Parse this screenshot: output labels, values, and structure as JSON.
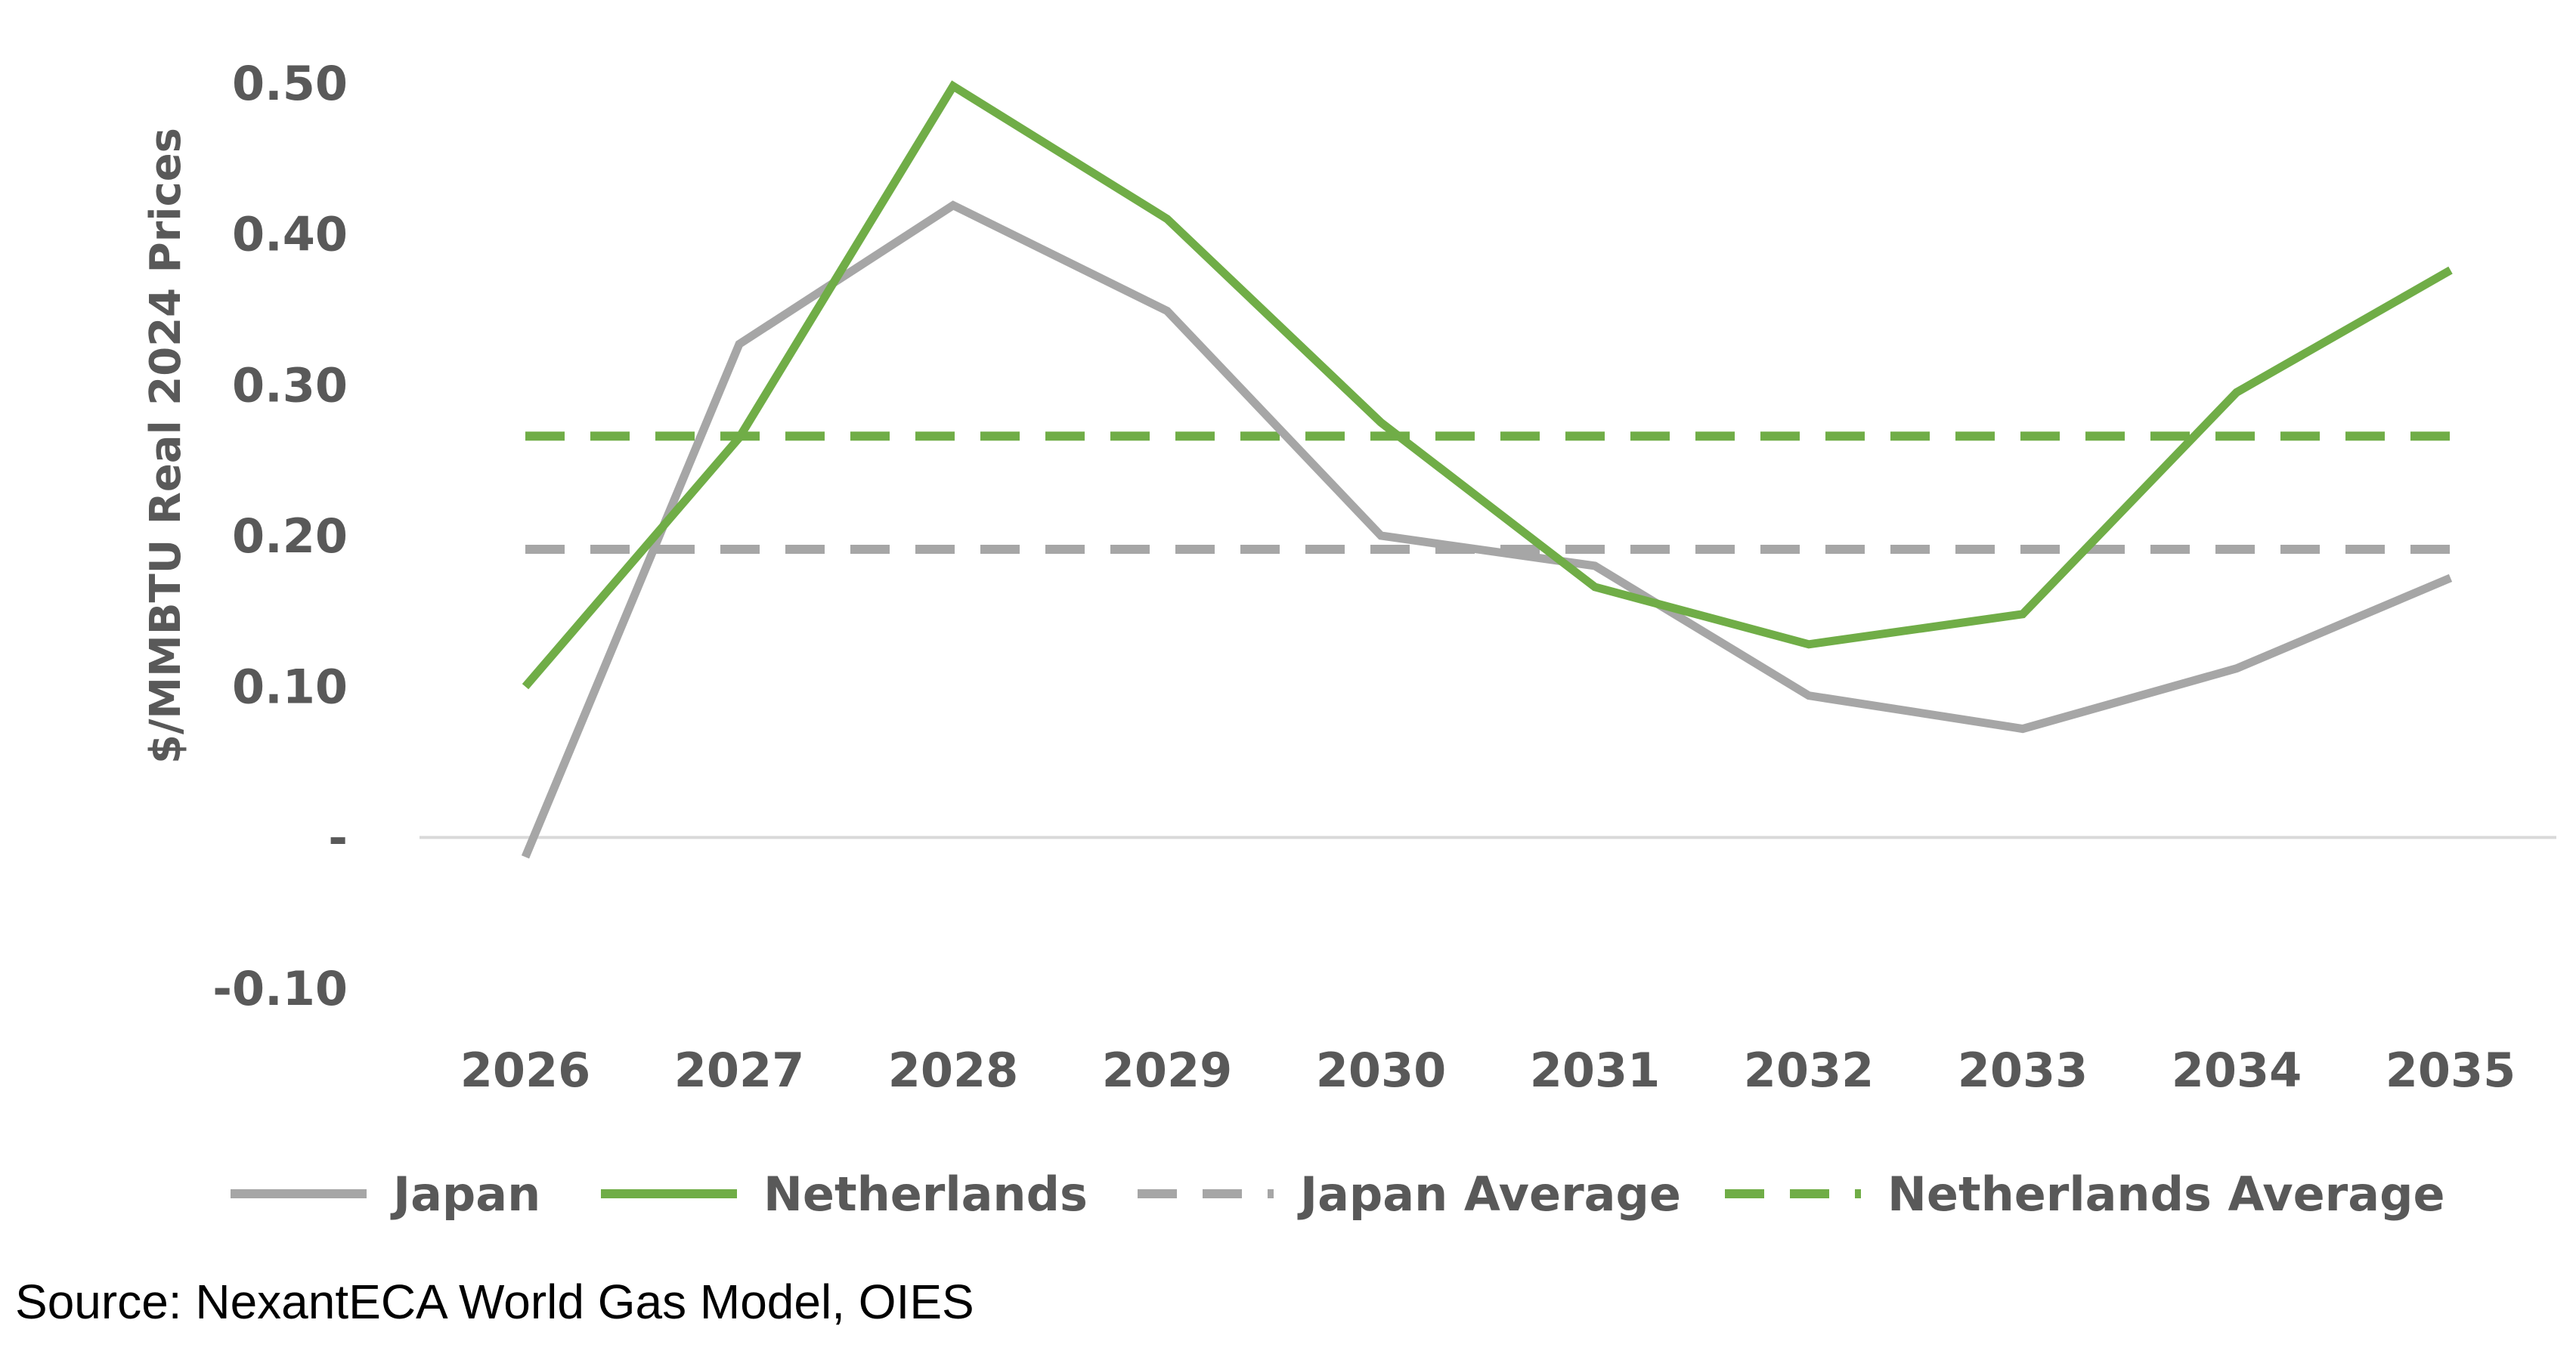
{
  "chart_data": {
    "type": "line",
    "ylabel": "$/MMBTU Real 2024 Prices",
    "ylim": [
      -0.1,
      0.5
    ],
    "yticks": [
      {
        "value": 0.5,
        "label": "0.50"
      },
      {
        "value": 0.4,
        "label": "0.40"
      },
      {
        "value": 0.3,
        "label": "0.30"
      },
      {
        "value": 0.2,
        "label": "0.20"
      },
      {
        "value": 0.1,
        "label": "0.10"
      },
      {
        "value": 0.0,
        "label": "-"
      },
      {
        "value": -0.1,
        "label": "-0.10"
      }
    ],
    "categories": [
      "2026",
      "2027",
      "2028",
      "2029",
      "2030",
      "2031",
      "2032",
      "2033",
      "2034",
      "2035"
    ],
    "series": [
      {
        "name": "Japan",
        "style": "solid",
        "color": "#a6a6a6",
        "values": [
          -0.013,
          0.327,
          0.419,
          0.349,
          0.2,
          0.18,
          0.094,
          0.072,
          0.112,
          0.172
        ]
      },
      {
        "name": "Netherlands",
        "style": "solid",
        "color": "#70ad47",
        "values": [
          0.1,
          0.265,
          0.498,
          0.41,
          0.275,
          0.166,
          0.128,
          0.148,
          0.295,
          0.376
        ]
      },
      {
        "name": "Japan Average",
        "style": "dashed",
        "color": "#a6a6a6",
        "values": [
          0.191,
          0.191,
          0.191,
          0.191,
          0.191,
          0.191,
          0.191,
          0.191,
          0.191,
          0.191
        ]
      },
      {
        "name": "Netherlands Average",
        "style": "dashed",
        "color": "#70ad47",
        "values": [
          0.266,
          0.266,
          0.266,
          0.266,
          0.266,
          0.266,
          0.266,
          0.266,
          0.266,
          0.266
        ]
      }
    ],
    "grid": false,
    "legend_position": "bottom"
  },
  "source": "Source: NexantECA World Gas Model, OIES"
}
